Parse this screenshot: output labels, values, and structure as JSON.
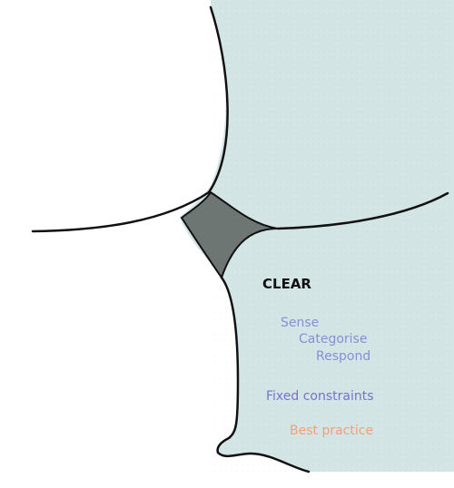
{
  "domain_title": "CLEAR",
  "approach": {
    "sense": "Sense",
    "categorise": "Categorise",
    "respond": "Respond"
  },
  "constraints": "Fixed constraints",
  "practice": "Best practice",
  "colors": {
    "domain_fill": "#d4e5e5",
    "disorder_fill": "#6e7674",
    "approach_text": "#8a8ed2",
    "constraints_text": "#7a72c8",
    "practice_text": "#f0a07a",
    "title_text": "#111111",
    "line": "#111111",
    "background": "#ffffff"
  }
}
